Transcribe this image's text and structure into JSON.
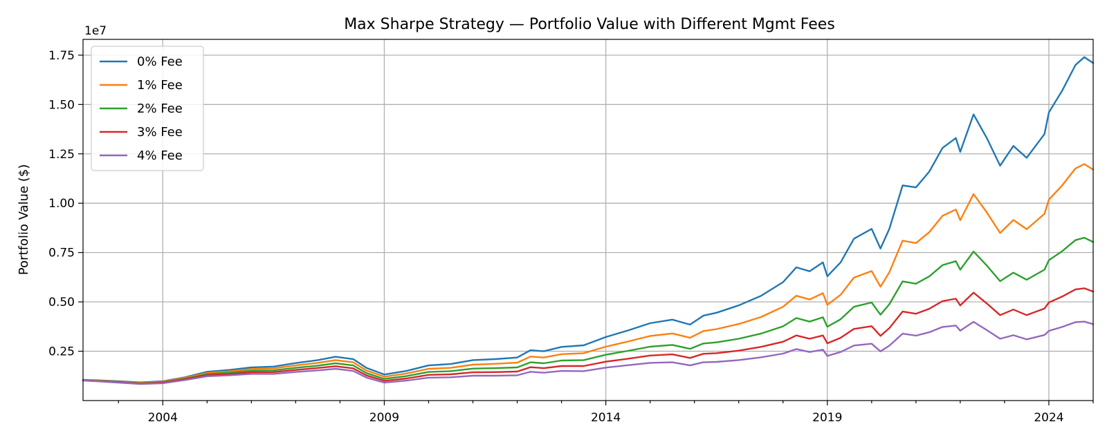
{
  "chart_data": {
    "type": "line",
    "title": "Max Sharpe Strategy — Portfolio Value with Different Mgmt Fees",
    "xlabel": "",
    "ylabel": "Portfolio Value ($)",
    "y_offset_label": "1e7",
    "xlim": [
      2002.2,
      2025.0
    ],
    "ylim": [
      0,
      1.83
    ],
    "x_ticks": [
      2004,
      2009,
      2014,
      2019,
      2024
    ],
    "x_tick_labels": [
      "2004",
      "2009",
      "2014",
      "2019",
      "2024"
    ],
    "y_ticks": [
      0.25,
      0.5,
      0.75,
      1.0,
      1.25,
      1.5,
      1.75
    ],
    "y_tick_labels": [
      "0.25",
      "0.50",
      "0.75",
      "1.00",
      "1.25",
      "1.50",
      "1.75"
    ],
    "grid": true,
    "legend_position": "top-left",
    "x": [
      2002.2,
      2002.5,
      2003.0,
      2003.5,
      2004.0,
      2004.5,
      2005.0,
      2005.5,
      2006.0,
      2006.5,
      2007.0,
      2007.5,
      2007.9,
      2008.3,
      2008.6,
      2009.0,
      2009.5,
      2010.0,
      2010.5,
      2011.0,
      2011.5,
      2012.0,
      2012.3,
      2012.6,
      2013.0,
      2013.5,
      2014.0,
      2014.5,
      2015.0,
      2015.5,
      2015.9,
      2016.2,
      2016.5,
      2017.0,
      2017.5,
      2018.0,
      2018.3,
      2018.6,
      2018.9,
      2019.0,
      2019.3,
      2019.6,
      2020.0,
      2020.2,
      2020.4,
      2020.7,
      2021.0,
      2021.3,
      2021.6,
      2021.9,
      2022.0,
      2022.3,
      2022.6,
      2022.9,
      2023.2,
      2023.5,
      2023.9,
      2024.0,
      2024.3,
      2024.6,
      2024.8,
      2025.0
    ],
    "series": [
      {
        "name": "0% Fee",
        "color": "#1f77b4",
        "values": [
          0.105,
          0.103,
          0.098,
          0.092,
          0.098,
          0.118,
          0.146,
          0.155,
          0.168,
          0.172,
          0.19,
          0.205,
          0.222,
          0.21,
          0.165,
          0.132,
          0.15,
          0.178,
          0.185,
          0.205,
          0.21,
          0.218,
          0.255,
          0.25,
          0.272,
          0.28,
          0.322,
          0.355,
          0.392,
          0.41,
          0.385,
          0.43,
          0.445,
          0.482,
          0.53,
          0.6,
          0.675,
          0.655,
          0.7,
          0.63,
          0.7,
          0.82,
          0.87,
          0.77,
          0.87,
          1.09,
          1.08,
          1.16,
          1.28,
          1.33,
          1.26,
          1.45,
          1.33,
          1.19,
          1.29,
          1.23,
          1.35,
          1.46,
          1.57,
          1.7,
          1.74,
          1.71
        ]
      },
      {
        "name": "1% Fee",
        "color": "#ff7f0e",
        "values": [
          0.104,
          0.101,
          0.096,
          0.09,
          0.096,
          0.115,
          0.14,
          0.148,
          0.16,
          0.163,
          0.178,
          0.191,
          0.205,
          0.194,
          0.152,
          0.121,
          0.137,
          0.161,
          0.166,
          0.182,
          0.186,
          0.192,
          0.223,
          0.218,
          0.235,
          0.24,
          0.273,
          0.299,
          0.327,
          0.34,
          0.318,
          0.352,
          0.362,
          0.388,
          0.423,
          0.475,
          0.531,
          0.512,
          0.544,
          0.485,
          0.536,
          0.623,
          0.656,
          0.577,
          0.65,
          0.81,
          0.798,
          0.853,
          0.936,
          0.968,
          0.914,
          1.046,
          0.953,
          0.849,
          0.915,
          0.868,
          0.946,
          1.018,
          1.09,
          1.176,
          1.198,
          1.17
        ]
      },
      {
        "name": "2% Fee",
        "color": "#2ca02c",
        "values": [
          0.103,
          0.1,
          0.094,
          0.088,
          0.093,
          0.111,
          0.134,
          0.141,
          0.151,
          0.153,
          0.166,
          0.177,
          0.189,
          0.178,
          0.139,
          0.11,
          0.124,
          0.145,
          0.149,
          0.162,
          0.164,
          0.168,
          0.194,
          0.189,
          0.203,
          0.205,
          0.232,
          0.252,
          0.273,
          0.282,
          0.262,
          0.289,
          0.295,
          0.313,
          0.339,
          0.376,
          0.418,
          0.4,
          0.422,
          0.374,
          0.412,
          0.475,
          0.497,
          0.435,
          0.488,
          0.604,
          0.592,
          0.629,
          0.686,
          0.706,
          0.663,
          0.755,
          0.684,
          0.605,
          0.648,
          0.612,
          0.663,
          0.711,
          0.757,
          0.813,
          0.825,
          0.803
        ]
      },
      {
        "name": "3% Fee",
        "color": "#d62728",
        "values": [
          0.102,
          0.099,
          0.093,
          0.086,
          0.091,
          0.108,
          0.129,
          0.134,
          0.143,
          0.144,
          0.155,
          0.165,
          0.174,
          0.163,
          0.127,
          0.1,
          0.112,
          0.13,
          0.133,
          0.143,
          0.144,
          0.147,
          0.169,
          0.164,
          0.175,
          0.175,
          0.197,
          0.212,
          0.228,
          0.234,
          0.216,
          0.237,
          0.24,
          0.253,
          0.272,
          0.298,
          0.33,
          0.313,
          0.33,
          0.29,
          0.318,
          0.363,
          0.377,
          0.328,
          0.367,
          0.451,
          0.44,
          0.465,
          0.504,
          0.516,
          0.482,
          0.547,
          0.492,
          0.433,
          0.461,
          0.433,
          0.466,
          0.497,
          0.527,
          0.563,
          0.569,
          0.552
        ]
      },
      {
        "name": "4% Fee",
        "color": "#9467bd",
        "values": [
          0.101,
          0.098,
          0.091,
          0.084,
          0.088,
          0.104,
          0.123,
          0.128,
          0.135,
          0.135,
          0.145,
          0.153,
          0.161,
          0.15,
          0.116,
          0.091,
          0.101,
          0.116,
          0.118,
          0.126,
          0.126,
          0.128,
          0.146,
          0.141,
          0.15,
          0.149,
          0.167,
          0.179,
          0.191,
          0.194,
          0.178,
          0.194,
          0.196,
          0.205,
          0.219,
          0.238,
          0.261,
          0.246,
          0.258,
          0.226,
          0.246,
          0.279,
          0.288,
          0.249,
          0.278,
          0.339,
          0.329,
          0.346,
          0.373,
          0.38,
          0.354,
          0.399,
          0.357,
          0.313,
          0.331,
          0.31,
          0.332,
          0.353,
          0.373,
          0.397,
          0.4,
          0.387
        ]
      }
    ]
  }
}
